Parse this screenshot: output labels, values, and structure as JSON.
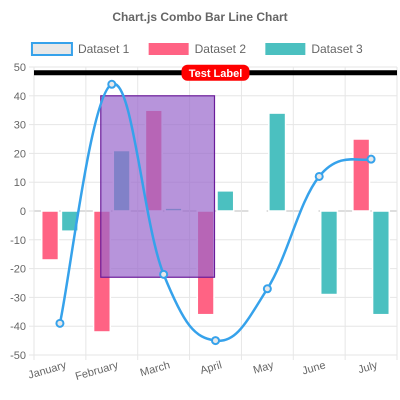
{
  "chart_data": {
    "type": "bar",
    "title": "Chart.js Combo Bar Line Chart",
    "categories": [
      "January",
      "February",
      "March",
      "April",
      "May",
      "June",
      "July"
    ],
    "ylim": [
      -50,
      50
    ],
    "y_ticks": [
      50,
      40,
      30,
      20,
      10,
      0,
      -10,
      -20,
      -30,
      -40,
      -50
    ],
    "grid": true,
    "legend_position": "top",
    "series": [
      {
        "name": "Dataset 1",
        "type": "line",
        "values": [
          -39,
          44,
          -22,
          -45,
          -27,
          12,
          18
        ],
        "color": "#36a2eb",
        "fill": "#e8e8e8"
      },
      {
        "name": "Dataset 2",
        "type": "bar",
        "values": [
          -17,
          -42,
          35,
          -36,
          0.3,
          -0.5,
          25
        ],
        "color": "#ff6384"
      },
      {
        "name": "Dataset 3",
        "type": "bar",
        "values": [
          -7,
          21,
          1,
          7,
          34,
          -29,
          -36
        ],
        "color": "#4bc0c0"
      }
    ],
    "annotations": {
      "line": {
        "value": 48,
        "label": "Test Label",
        "line_color": "#000000",
        "label_color": "#ff0000"
      },
      "box": {
        "x_from": "February",
        "x_to": "April",
        "y_from": -23,
        "y_to": 40,
        "fill": "#9966cc",
        "border": "#6a1b9a"
      }
    }
  }
}
